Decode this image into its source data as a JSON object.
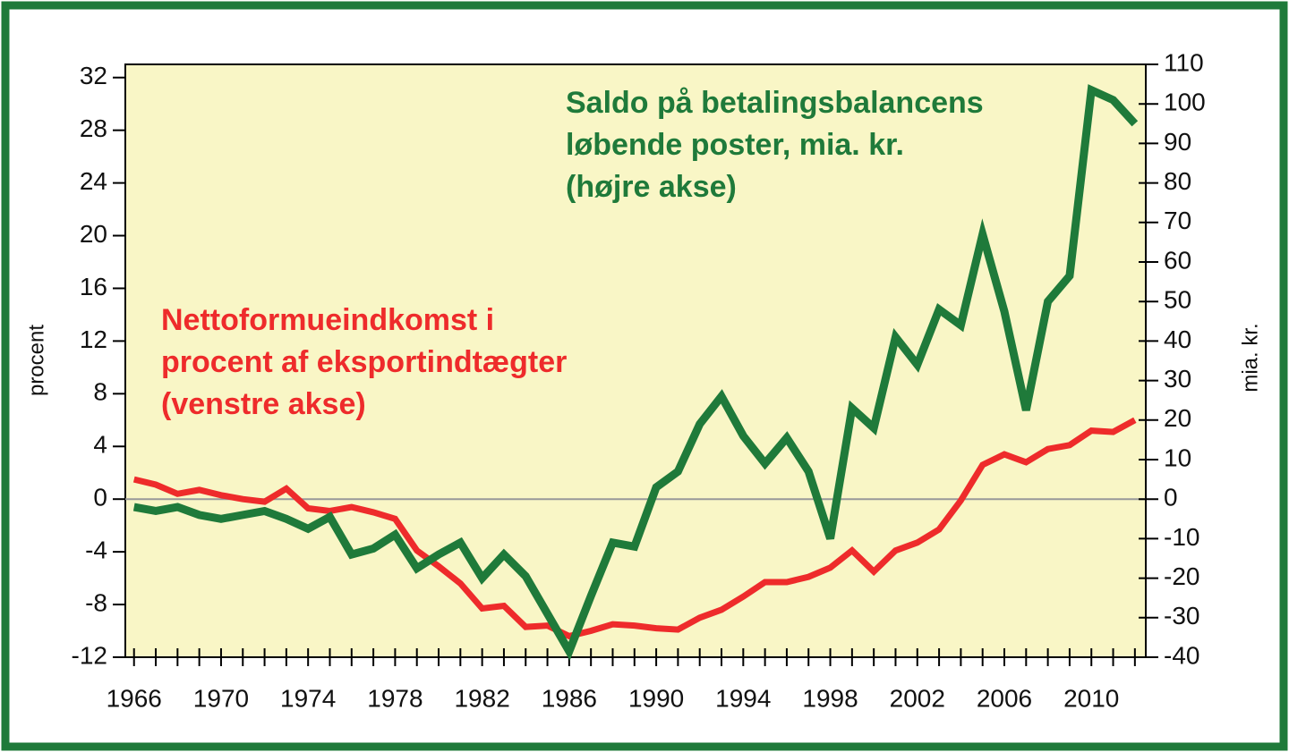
{
  "chart_data": {
    "type": "line",
    "y_label": "procent",
    "y2_label": "mia. kr.",
    "x": [
      1966,
      1967,
      1968,
      1969,
      1970,
      1971,
      1972,
      1973,
      1974,
      1975,
      1976,
      1977,
      1978,
      1979,
      1980,
      1981,
      1982,
      1983,
      1984,
      1985,
      1986,
      1987,
      1988,
      1989,
      1990,
      1991,
      1992,
      1993,
      1994,
      1995,
      1996,
      1997,
      1998,
      1999,
      2000,
      2001,
      2002,
      2003,
      2004,
      2005,
      2006,
      2007,
      2008,
      2009,
      2010,
      2011,
      2012
    ],
    "xlim": [
      1965.6,
      2012.5
    ],
    "xticks": [
      1966,
      1970,
      1974,
      1978,
      1982,
      1986,
      1990,
      1994,
      1998,
      2002,
      2006,
      2010
    ],
    "xminorticks": [
      1966,
      1967,
      1968,
      1969,
      1970,
      1971,
      1972,
      1973,
      1974,
      1975,
      1976,
      1977,
      1978,
      1979,
      1980,
      1981,
      1982,
      1983,
      1984,
      1985,
      1986,
      1987,
      1988,
      1989,
      1990,
      1991,
      1992,
      1993,
      1994,
      1995,
      1996,
      1997,
      1998,
      1999,
      2000,
      2001,
      2002,
      2003,
      2004,
      2005,
      2006,
      2007,
      2008,
      2009,
      2010,
      2011,
      2012
    ],
    "ylim": [
      -12,
      33
    ],
    "yticks": [
      -12,
      -8,
      -4,
      0,
      4,
      8,
      12,
      16,
      20,
      24,
      28,
      32
    ],
    "y2lim": [
      -40,
      110
    ],
    "y2ticks": [
      -40,
      -30,
      -20,
      -10,
      0,
      10,
      20,
      30,
      40,
      50,
      60,
      70,
      80,
      90,
      100,
      110
    ],
    "zero_line": 0,
    "series": [
      {
        "color": "#ee2b2b",
        "values": [
          1.5,
          1.1,
          0.4,
          0.7,
          0.3,
          0,
          -0.2,
          0.8,
          -0.7,
          -0.9,
          -0.6,
          -1.0,
          -1.5,
          -3.9,
          -5.1,
          -6.4,
          -8.3,
          -8.1,
          -9.7,
          -9.6,
          -10.4,
          -10.0,
          -9.5,
          -9.6,
          -9.8,
          -9.9,
          -9.0,
          -8.4,
          -7.4,
          -6.3,
          -6.3,
          -5.9,
          -5.2,
          -3.9,
          -5.5,
          -3.9,
          -3.3,
          -2.3,
          -0.1,
          2.6,
          3.4,
          2.8,
          3.8,
          4.1,
          5.2,
          5.1,
          6.0
        ]
      },
      {
        "color": "#1f7a3a",
        "axis": "y2",
        "values": [
          -2,
          -3,
          -2,
          -4,
          -5,
          -4,
          -3,
          -5,
          -7.5,
          -4.5,
          -14,
          -12.5,
          -9,
          -17.5,
          -14,
          -11,
          -20,
          -14,
          -19.5,
          -29,
          -38.5,
          -24.5,
          -11,
          -12,
          3,
          7,
          19,
          26,
          16,
          9,
          15.5,
          7,
          -10,
          23,
          18,
          41,
          34,
          48,
          44,
          67,
          47.5,
          22.5,
          50,
          56.5,
          103.5,
          101,
          95
        ]
      }
    ],
    "annotations": [
      {
        "color": "#1f7a3a",
        "lines": [
          "Saldo på betalingsbalancens",
          "løbende poster, mia. kr.",
          "(højre akse)"
        ]
      },
      {
        "color": "#ee2b2b",
        "lines": [
          "Nettoformueindkomst i",
          "procent af eksportindtægter",
          "(venstre akse)"
        ]
      }
    ]
  }
}
